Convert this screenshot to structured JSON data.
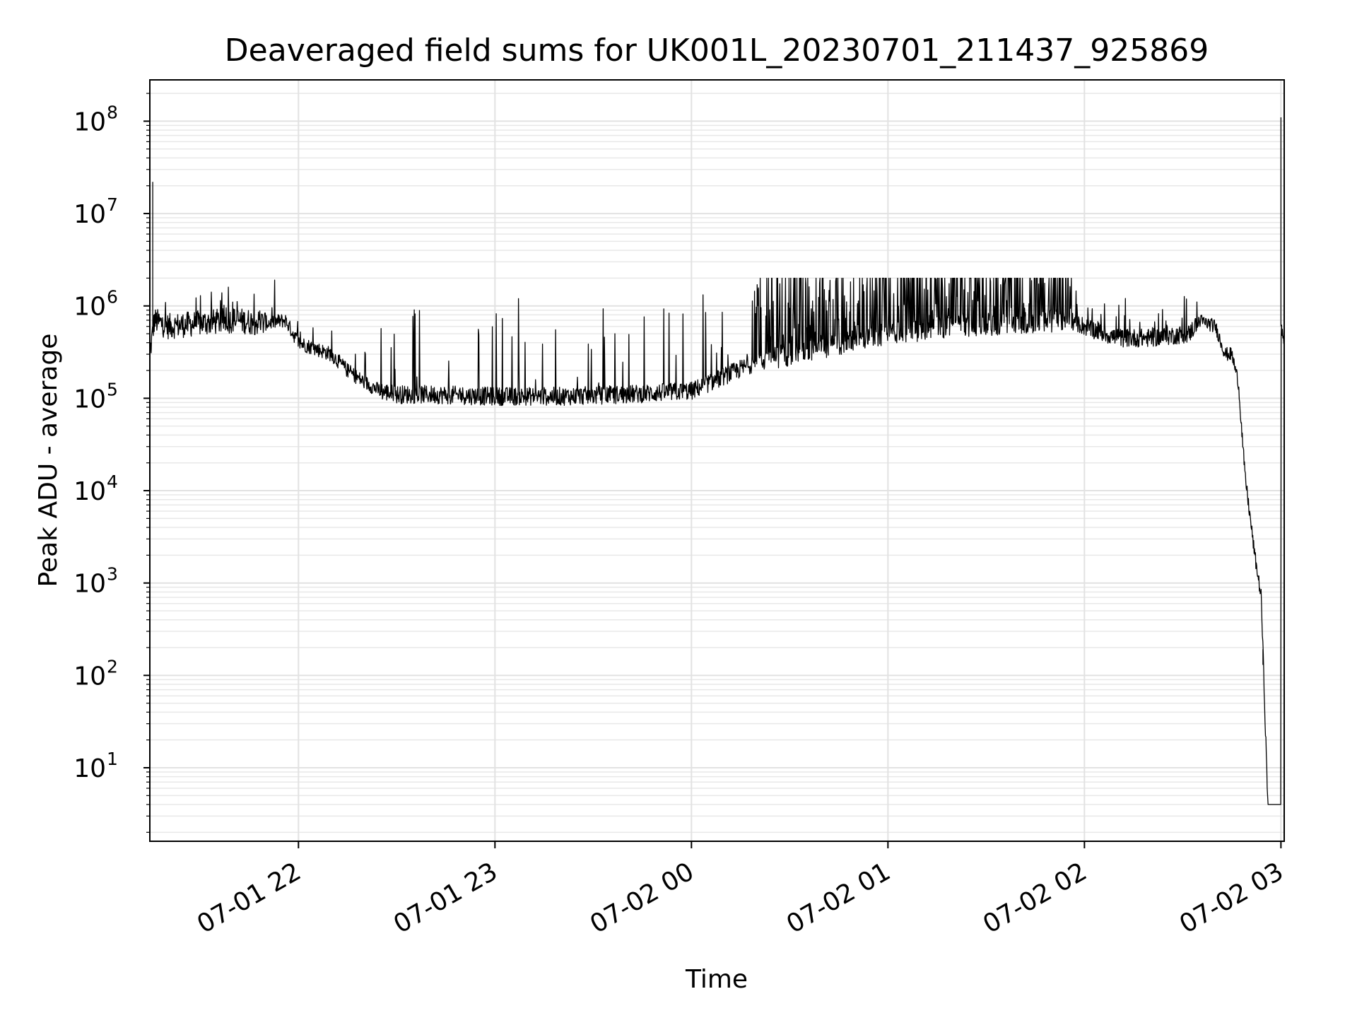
{
  "chart_data": {
    "type": "line",
    "title": "Deaveraged field sums for UK001L_20230701_211437_925869",
    "xlabel": "Time",
    "ylabel": "Peak ADU - average",
    "xscale": "time",
    "yscale": "log",
    "grid": true,
    "x_ticks": [
      "07-01 22",
      "07-01 23",
      "07-02 00",
      "07-02 01",
      "07-02 02",
      "07-02 03"
    ],
    "y_ticks": [
      {
        "base": "10",
        "exp": "1"
      },
      {
        "base": "10",
        "exp": "2"
      },
      {
        "base": "10",
        "exp": "3"
      },
      {
        "base": "10",
        "exp": "4"
      },
      {
        "base": "10",
        "exp": "5"
      },
      {
        "base": "10",
        "exp": "6"
      },
      {
        "base": "10",
        "exp": "7"
      },
      {
        "base": "10",
        "exp": "8"
      }
    ],
    "xlim": [
      "2023-07-01 21:14:37",
      "2023-07-02 03:01:00"
    ],
    "ylim": [
      1.6,
      280000000
    ],
    "series": [
      {
        "color": "#000000",
        "x": [
          "2023-07-01 21:14:37",
          "2023-07-01 21:16:00",
          "2023-07-01 21:20:00",
          "2023-07-01 21:30:00",
          "2023-07-01 21:40:00",
          "2023-07-01 21:50:00",
          "2023-07-01 21:56:00",
          "2023-07-01 22:00:00",
          "2023-07-01 22:10:00",
          "2023-07-01 22:15:00",
          "2023-07-01 22:20:00",
          "2023-07-01 22:25:00",
          "2023-07-01 22:30:00",
          "2023-07-01 22:40:00",
          "2023-07-01 23:00:00",
          "2023-07-01 23:20:00",
          "2023-07-01 23:40:00",
          "2023-07-02 00:00:00",
          "2023-07-02 00:20:00",
          "2023-07-02 00:40:00",
          "2023-07-02 01:00:00",
          "2023-07-02 01:20:00",
          "2023-07-02 01:40:00",
          "2023-07-02 01:56:00",
          "2023-07-02 02:00:00",
          "2023-07-02 02:10:00",
          "2023-07-02 02:20:00",
          "2023-07-02 02:32:00",
          "2023-07-02 02:35:00",
          "2023-07-02 02:40:00",
          "2023-07-02 02:43:00",
          "2023-07-02 02:45:00",
          "2023-07-02 02:47:00",
          "2023-07-02 02:49:00",
          "2023-07-02 02:52:00",
          "2023-07-02 02:54:00",
          "2023-07-02 02:56:00",
          "2023-07-02 02:58:00",
          "2023-07-02 03:00:00",
          "2023-07-02 03:01:00"
        ],
        "y": [
          300000,
          700000,
          600000,
          650000,
          700000,
          650000,
          700000,
          400000,
          300000,
          200000,
          150000,
          120000,
          110000,
          110000,
          105000,
          105000,
          110000,
          120000,
          250000,
          350000,
          500000,
          600000,
          650000,
          700000,
          600000,
          450000,
          450000,
          500000,
          700000,
          600000,
          300000,
          300000,
          150000,
          15000,
          2000,
          700,
          4,
          4,
          600000,
          400000
        ]
      }
    ]
  }
}
